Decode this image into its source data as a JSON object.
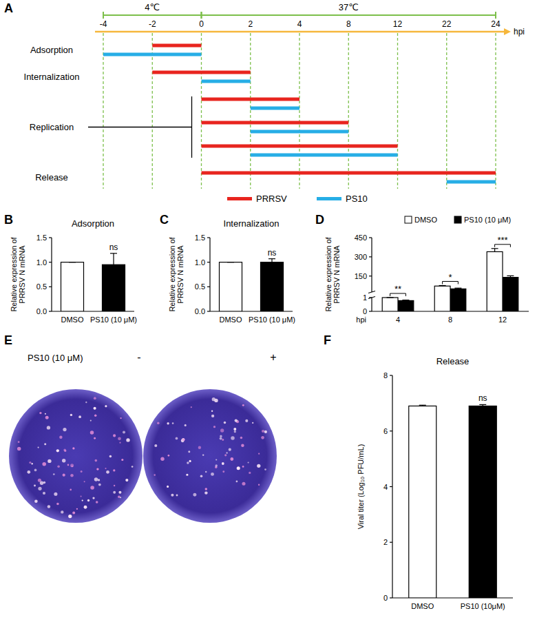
{
  "timeline": {
    "letter": "A",
    "unit": "hpi",
    "ticks": [
      -4,
      -2,
      0,
      2,
      4,
      8,
      12,
      22,
      24
    ],
    "phases": [
      {
        "label": "4℃",
        "start": -4,
        "end": 0
      },
      {
        "label": "37℃",
        "start": 0,
        "end": 24
      }
    ],
    "series": [
      {
        "name": "PRRSV",
        "color": "#e8251f"
      },
      {
        "name": "PS10",
        "color": "#27aee6"
      }
    ],
    "stages": [
      {
        "label": "Adsorption",
        "bars": [
          {
            "series": 0,
            "start": -2,
            "end": 0
          },
          {
            "series": 1,
            "start": -4,
            "end": 0
          }
        ]
      },
      {
        "label": "Internalization",
        "bars": [
          {
            "series": 0,
            "start": -2,
            "end": 2
          },
          {
            "series": 1,
            "start": 0,
            "end": 2
          }
        ]
      },
      {
        "label": "Replication",
        "bars": [
          {
            "series": 0,
            "start": 0,
            "end": 4
          },
          {
            "series": 1,
            "start": 2,
            "end": 4
          },
          {
            "series": 0,
            "start": 0,
            "end": 8
          },
          {
            "series": 1,
            "start": 2,
            "end": 8
          },
          {
            "series": 0,
            "start": 0,
            "end": 12
          },
          {
            "series": 1,
            "start": 2,
            "end": 12
          }
        ]
      },
      {
        "label": "Release",
        "bars": [
          {
            "series": 0,
            "start": 0,
            "end": 24
          },
          {
            "series": 1,
            "start": 22,
            "end": 24
          }
        ]
      }
    ]
  },
  "plaque": {
    "letter": "E",
    "label": "PS10 (10 μM)",
    "conditions": [
      "-",
      "+"
    ]
  },
  "chart_data": [
    {
      "panel": "B",
      "type": "bar",
      "title": "Adsorption",
      "y_label": "Relative expression of PRRSV N mRNA",
      "categories": [
        "DMSO",
        "PS10 (10 μM)"
      ],
      "values": [
        1,
        0.95
      ],
      "errors": [
        0,
        0.23
      ],
      "colors": [
        "#ffffff",
        "#000000"
      ],
      "ylim": [
        0,
        1.5
      ],
      "yticks": [
        {
          "value": 0,
          "label": "0.0"
        },
        {
          "value": 0.5,
          "label": "0.5"
        },
        {
          "value": 1,
          "label": "1.0"
        },
        {
          "value": 1.5,
          "label": "1.5"
        }
      ],
      "annotations": [
        {
          "category": 1,
          "text": "ns"
        }
      ]
    },
    {
      "panel": "C",
      "type": "bar",
      "title": "Internalization",
      "y_label": "Relative expression of PRRSV N mRNA",
      "categories": [
        "DMSO",
        "PS10 (10 μM)"
      ],
      "values": [
        1,
        1.0
      ],
      "errors": [
        0,
        0.07
      ],
      "colors": [
        "#ffffff",
        "#000000"
      ],
      "ylim": [
        0,
        1.5
      ],
      "yticks": [
        {
          "value": 0,
          "label": "0.0"
        },
        {
          "value": 0.5,
          "label": "0.5"
        },
        {
          "value": 1,
          "label": "1.0"
        },
        {
          "value": 1.5,
          "label": "1.5"
        }
      ],
      "annotations": [
        {
          "category": 1,
          "text": "ns"
        }
      ]
    },
    {
      "panel": "D",
      "type": "bar",
      "x_label": "hpi",
      "y_label": "Relative expression of PRRSV N mRNA",
      "categories": [
        "4",
        "8",
        "12"
      ],
      "series": [
        {
          "name": "DMSO",
          "color": "#ffffff",
          "values": [
            1,
            72,
            340
          ],
          "errors": [
            0.03,
            4,
            25
          ]
        },
        {
          "name": "PS10 (10 μM)",
          "color": "#000000",
          "values": [
            0.78,
            50,
            140
          ],
          "errors": [
            0.04,
            6,
            12
          ]
        }
      ],
      "ylim": [
        0,
        450
      ],
      "yticks": [
        0,
        1,
        150,
        300,
        450
      ],
      "axis_break": [
        1,
        25
      ],
      "legend": "top-right",
      "annotations": [
        {
          "category": 0,
          "text": "**"
        },
        {
          "category": 1,
          "text": "*"
        },
        {
          "category": 2,
          "text": "***"
        }
      ]
    },
    {
      "panel": "F",
      "type": "bar",
      "title": "Release",
      "y_label": "Viral titer (Log₁₀ PFU/mL)",
      "categories": [
        "DMSO",
        "PS10 (10μM)"
      ],
      "values": [
        6.9,
        6.9
      ],
      "errors": [
        0.03,
        0.05
      ],
      "colors": [
        "#ffffff",
        "#000000"
      ],
      "ylim": [
        0,
        8
      ],
      "yticks": [
        0,
        2,
        4,
        6,
        8
      ],
      "annotations": [
        {
          "category": 1,
          "text": "ns"
        }
      ]
    }
  ]
}
